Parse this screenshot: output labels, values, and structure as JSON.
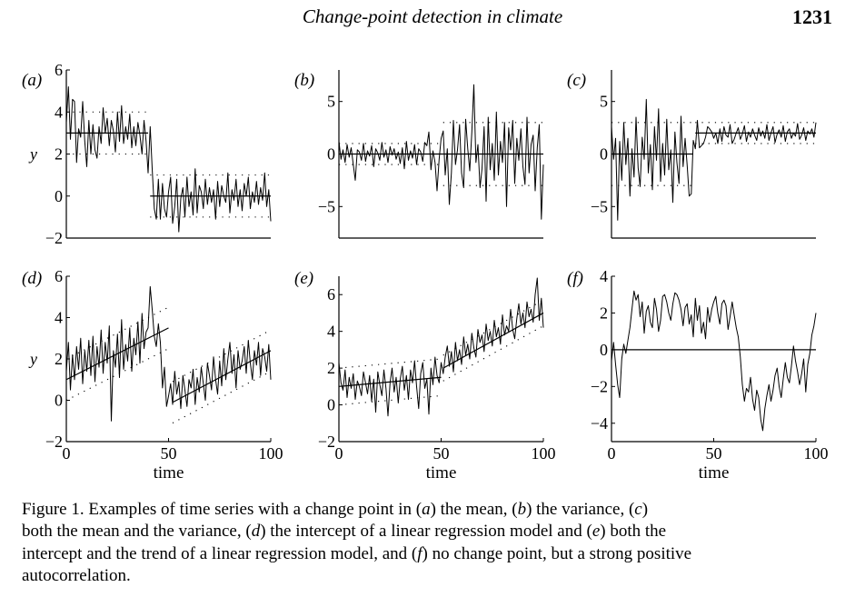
{
  "header": {
    "running_title": "Change-point detection in climate",
    "page_number": "1231"
  },
  "chart_data": [
    {
      "panel": "(a)",
      "type": "line",
      "ylabel": "y",
      "xlabel": "",
      "xlim": [
        0,
        100
      ],
      "ylim": [
        -2,
        6
      ],
      "xticks": [],
      "yticks": [
        -2,
        0,
        2,
        4,
        6
      ],
      "series": [
        {
          "values": [
            3.5,
            5.2,
            2.7,
            4.6,
            4.5,
            1.6,
            3.2,
            2.8,
            4.5,
            2.6,
            1.4,
            3.6,
            2.0,
            3.4,
            2.2,
            1.8,
            3.3,
            2.5,
            4.2,
            3.0,
            3.7,
            2.4,
            3.6,
            3.1,
            2.1,
            4.0,
            2.6,
            4.3,
            2.5,
            3.3,
            2.7,
            3.9,
            2.3,
            3.3,
            2.4,
            3.5,
            2.9,
            2.0,
            3.6,
            2.6,
            1.1,
            3.3,
            1.3,
            -0.6,
            -1.1,
            0.8,
            -1.1,
            0.6,
            -0.6,
            -1.0,
            0.2,
            0.9,
            -1.3,
            -0.5,
            0.8,
            -1.7,
            -0.1,
            0.4,
            -1.0,
            0.9,
            -0.5,
            0.2,
            -0.9,
            1.3,
            -0.8,
            0.5,
            0.2,
            -0.6,
            0.8,
            -0.4,
            0.4,
            -0.3,
            0.3,
            -1.1,
            0.7,
            -0.5,
            0.5,
            0.0,
            -0.3,
            1.1,
            -0.8,
            0.3,
            -0.2,
            0.8,
            -0.5,
            0.3,
            -0.7,
            0.6,
            0.0,
            0.9,
            -0.6,
            0.2,
            -0.3,
            0.7,
            -0.4,
            0.4,
            -0.2,
            1.1,
            -0.5,
            0.3,
            -1.2
          ]
        },
        {
          "kind": "mean",
          "segments": [
            [
              0,
              40,
              3.0,
              3.0
            ],
            [
              41,
              100,
              0.0,
              0.0
            ]
          ]
        },
        {
          "kind": "band",
          "segments": [
            [
              0,
              40,
              4.0,
              4.0
            ],
            [
              0,
              40,
              2.0,
              2.0
            ],
            [
              41,
              100,
              1.0,
              1.0
            ],
            [
              41,
              100,
              -1.0,
              -1.0
            ]
          ]
        }
      ]
    },
    {
      "panel": "(b)",
      "type": "line",
      "ylabel": "",
      "xlabel": "",
      "xlim": [
        0,
        100
      ],
      "ylim": [
        -8,
        8
      ],
      "xticks": [],
      "yticks": [
        -5,
        0,
        5
      ],
      "series": [
        {
          "values": [
            1.2,
            -0.5,
            0.4,
            -0.8,
            0.9,
            -0.3,
            0.6,
            -1.0,
            -2.5,
            0.4,
            0.2,
            -0.6,
            1.0,
            -0.7,
            0.3,
            -0.2,
            0.8,
            -1.2,
            0.5,
            0.1,
            -0.6,
            1.1,
            -0.3,
            0.4,
            -0.8,
            0.7,
            -0.1,
            0.5,
            -0.5,
            0.2,
            -0.9,
            0.6,
            -1.4,
            1.2,
            -0.6,
            0.3,
            -0.4,
            0.9,
            -1.0,
            0.5,
            0.2,
            -0.7,
            1.1,
            0.8,
            2.1,
            -1.5,
            0.3,
            -0.8,
            -3.5,
            -0.5,
            1.5,
            2.2,
            -2.0,
            0.5,
            -4.8,
            -1.8,
            3.2,
            -1.0,
            0.4,
            2.8,
            -1.8,
            -3.2,
            3.3,
            0.5,
            -1.6,
            2.1,
            6.6,
            -0.8,
            0.9,
            -3.2,
            -1.4,
            2.6,
            -4.5,
            3.5,
            -1.5,
            1.0,
            -2.5,
            4.0,
            -2.0,
            1.2,
            -0.8,
            3.0,
            -5.0,
            2.5,
            0.4,
            3.2,
            -2.8,
            1.5,
            -0.6,
            2.4,
            -1.2,
            -2.9,
            3.5,
            -1.8,
            0.9,
            1.8,
            -3.5,
            0.6,
            2.8,
            -6.2,
            -1.0
          ]
        },
        {
          "kind": "mean",
          "segments": [
            [
              0,
              100,
              0.0,
              0.0
            ]
          ]
        },
        {
          "kind": "band",
          "segments": [
            [
              0,
              50,
              1.0,
              1.0
            ],
            [
              0,
              50,
              -1.0,
              -1.0
            ],
            [
              51,
              100,
              3.0,
              3.0
            ],
            [
              51,
              100,
              -3.0,
              -3.0
            ]
          ]
        }
      ]
    },
    {
      "panel": "(c)",
      "type": "line",
      "ylabel": "",
      "xlabel": "",
      "xlim": [
        0,
        100
      ],
      "ylim": [
        -8,
        8
      ],
      "xticks": [],
      "yticks": [
        -5,
        0,
        5
      ],
      "series": [
        {
          "values": [
            2.6,
            -0.5,
            1.5,
            -6.3,
            1.2,
            -2.5,
            3.0,
            -1.0,
            1.5,
            -4.0,
            0.5,
            -2.2,
            3.5,
            -1.3,
            -3.1,
            1.6,
            -0.5,
            5.2,
            -1.8,
            0.9,
            -3.4,
            2.6,
            -0.6,
            4.3,
            -2.6,
            1.0,
            -2.0,
            3.3,
            -1.5,
            0.4,
            -4.6,
            2.1,
            -0.8,
            -2.8,
            3.6,
            -1.2,
            1.5,
            -1.1,
            -4.0,
            -3.8,
            1.3,
            0.5,
            3.2,
            0.6,
            0.8,
            1.0,
            1.6,
            2.6,
            2.4,
            2.1,
            1.5,
            2.0,
            1.0,
            2.4,
            1.2,
            2.6,
            1.8,
            1.6,
            2.8,
            1.0,
            1.4,
            2.0,
            2.5,
            1.4,
            1.9,
            2.7,
            1.2,
            2.1,
            1.6,
            2.4,
            1.8,
            1.3,
            2.5,
            1.7,
            2.2,
            1.5,
            2.8,
            1.3,
            2.0,
            2.6,
            1.1,
            1.9,
            2.3,
            1.6,
            2.7,
            1.2,
            2.1,
            2.4,
            1.5,
            2.0,
            1.7,
            2.9,
            1.4,
            1.8,
            2.5,
            1.3,
            2.2,
            1.9,
            2.4,
            1.6,
            3.0
          ]
        },
        {
          "kind": "mean",
          "segments": [
            [
              0,
              40,
              0.0,
              0.0
            ],
            [
              41,
              100,
              2.0,
              2.0
            ]
          ]
        },
        {
          "kind": "band",
          "segments": [
            [
              0,
              40,
              3.0,
              3.0
            ],
            [
              0,
              40,
              -3.0,
              -3.0
            ],
            [
              41,
              100,
              3.0,
              3.0
            ],
            [
              41,
              100,
              1.0,
              1.0
            ]
          ]
        }
      ]
    },
    {
      "panel": "(d)",
      "type": "line",
      "ylabel": "y",
      "xlabel": "time",
      "xlim": [
        0,
        100
      ],
      "ylim": [
        -2,
        6
      ],
      "xticks": [
        0,
        50,
        100
      ],
      "yticks": [
        -2,
        0,
        2,
        4,
        6
      ],
      "series": [
        {
          "values": [
            1.4,
            2.8,
            0.5,
            2.2,
            1.0,
            2.6,
            1.5,
            3.0,
            0.8,
            2.4,
            1.4,
            2.9,
            1.2,
            3.1,
            0.9,
            2.6,
            1.6,
            3.4,
            1.3,
            2.8,
            1.8,
            3.6,
            -1.0,
            2.4,
            1.6,
            3.2,
            1.1,
            3.9,
            1.5,
            2.7,
            1.9,
            3.5,
            1.4,
            3.0,
            2.2,
            3.8,
            1.8,
            4.2,
            2.5,
            3.3,
            3.5,
            5.5,
            4.4,
            3.1,
            2.6,
            3.7,
            2.8,
            0.6,
            1.6,
            -0.3,
            0.2,
            0.8,
            -0.2,
            1.4,
            0.3,
            0.9,
            -0.4,
            1.2,
            0.5,
            -0.3,
            1.0,
            0.6,
            1.5,
            -0.2,
            1.1,
            0.4,
            1.6,
            0.8,
            0.0,
            1.8,
            1.2,
            0.5,
            2.1,
            1.0,
            0.3,
            1.9,
            0.7,
            2.5,
            1.0,
            2.0,
            2.8,
            1.3,
            2.2,
            0.6,
            2.4,
            1.5,
            1.9,
            2.6,
            1.3,
            2.9,
            1.8,
            1.0,
            2.4,
            1.7,
            2.8,
            1.2,
            2.5,
            2.1,
            1.4,
            2.7,
            1.0
          ]
        },
        {
          "kind": "mean",
          "segments": [
            [
              0,
              50,
              1.0,
              3.5
            ],
            [
              52,
              100,
              -0.1,
              2.4
            ]
          ]
        },
        {
          "kind": "band",
          "segments": [
            [
              0,
              50,
              2.0,
              4.5
            ],
            [
              0,
              50,
              0.0,
              2.5
            ],
            [
              52,
              100,
              0.9,
              3.4
            ],
            [
              52,
              100,
              -1.1,
              1.4
            ]
          ]
        }
      ]
    },
    {
      "panel": "(e)",
      "type": "line",
      "ylabel": "",
      "xlabel": "time",
      "xlim": [
        0,
        100
      ],
      "ylim": [
        -2,
        7
      ],
      "xticks": [
        0,
        50,
        100
      ],
      "yticks": [
        -2,
        0,
        2,
        4,
        6
      ],
      "series": [
        {
          "values": [
            2.3,
            1.2,
            0.8,
            1.9,
            0.4,
            1.5,
            0.9,
            1.7,
            0.3,
            1.3,
            1.0,
            0.5,
            1.8,
            1.2,
            0.6,
            1.6,
            0.2,
            1.4,
            -0.4,
            1.8,
            1.1,
            0.5,
            1.9,
            0.9,
            -0.6,
            1.2,
            2.0,
            0.7,
            1.5,
            0.1,
            1.4,
            2.1,
            0.8,
            1.6,
            0.3,
            1.9,
            1.2,
            2.4,
            1.0,
            -0.2,
            1.7,
            2.3,
            0.9,
            1.4,
            -0.5,
            2.0,
            1.1,
            2.6,
            1.6,
            1.2,
            2.3,
            1.7,
            2.6,
            3.2,
            2.1,
            2.9,
            1.8,
            3.4,
            2.4,
            3.0,
            2.2,
            3.7,
            2.7,
            3.3,
            2.5,
            3.9,
            3.1,
            2.6,
            4.1,
            3.4,
            3.8,
            2.9,
            4.4,
            3.5,
            4.0,
            3.2,
            4.6,
            3.7,
            4.2,
            3.3,
            4.9,
            3.8,
            4.3,
            4.0,
            5.2,
            4.1,
            3.6,
            4.7,
            5.5,
            4.4,
            5.0,
            4.2,
            5.6,
            4.8,
            5.2,
            4.5,
            6.0,
            6.9,
            4.6,
            5.8,
            4.2
          ]
        },
        {
          "kind": "mean",
          "segments": [
            [
              0,
              50,
              1.0,
              1.5
            ],
            [
              51,
              100,
              2.0,
              5.0
            ]
          ]
        },
        {
          "kind": "band",
          "segments": [
            [
              0,
              50,
              2.0,
              2.5
            ],
            [
              0,
              50,
              0.0,
              0.5
            ],
            [
              51,
              100,
              2.7,
              5.7
            ],
            [
              51,
              100,
              1.3,
              4.3
            ]
          ]
        }
      ]
    },
    {
      "panel": "(f)",
      "type": "line",
      "ylabel": "",
      "xlabel": "time",
      "xlim": [
        0,
        100
      ],
      "ylim": [
        -5,
        4
      ],
      "xticks": [
        0,
        50,
        100
      ],
      "yticks": [
        -4,
        -2,
        0,
        2,
        4
      ],
      "series": [
        {
          "values": [
            -0.6,
            0.4,
            -0.8,
            -1.9,
            -2.6,
            -0.5,
            0.3,
            -0.2,
            0.5,
            1.2,
            2.2,
            3.2,
            2.7,
            3.0,
            1.8,
            2.6,
            0.9,
            2.1,
            2.4,
            1.5,
            1.2,
            2.8,
            2.2,
            1.0,
            1.6,
            2.9,
            3.0,
            2.6,
            2.0,
            1.6,
            2.5,
            3.1,
            3.0,
            2.7,
            2.2,
            1.3,
            2.3,
            2.5,
            1.4,
            1.9,
            0.7,
            2.8,
            1.6,
            2.4,
            0.9,
            1.5,
            0.6,
            2.3,
            1.5,
            2.2,
            2.6,
            2.9,
            2.0,
            1.4,
            2.5,
            2.7,
            2.4,
            1.1,
            1.8,
            2.6,
            1.9,
            1.2,
            0.7,
            -0.4,
            -1.9,
            -2.8,
            -2.1,
            -2.3,
            -1.5,
            -2.7,
            -3.3,
            -2.2,
            -2.6,
            -3.8,
            -4.4,
            -3.2,
            -2.5,
            -1.9,
            -2.8,
            -2.2,
            -1.4,
            -1.0,
            -2.0,
            -2.6,
            -1.6,
            -0.7,
            -1.5,
            -1.8,
            -0.9,
            0.2,
            -0.6,
            -1.2,
            -1.9,
            -1.3,
            -0.5,
            -2.3,
            -0.8,
            -0.2,
            0.8,
            1.3,
            2.0
          ]
        },
        {
          "kind": "mean",
          "segments": [
            [
              0,
              100,
              0.0,
              0.0
            ]
          ]
        }
      ]
    }
  ],
  "caption": {
    "l1": [
      "Figure 1. Examples of time series with a change point in (",
      "a",
      ") the mean, (",
      "b",
      ") the variance, (",
      "c",
      ")"
    ],
    "l2": [
      "both the mean and the variance, (",
      "d",
      ") the intercept of a linear regression model and (",
      "e",
      ") both the"
    ],
    "l3": [
      "intercept and the trend of a linear regression model, and (",
      "f",
      ") no change point, but a strong positive"
    ],
    "l4": [
      "autocorrelation."
    ]
  }
}
